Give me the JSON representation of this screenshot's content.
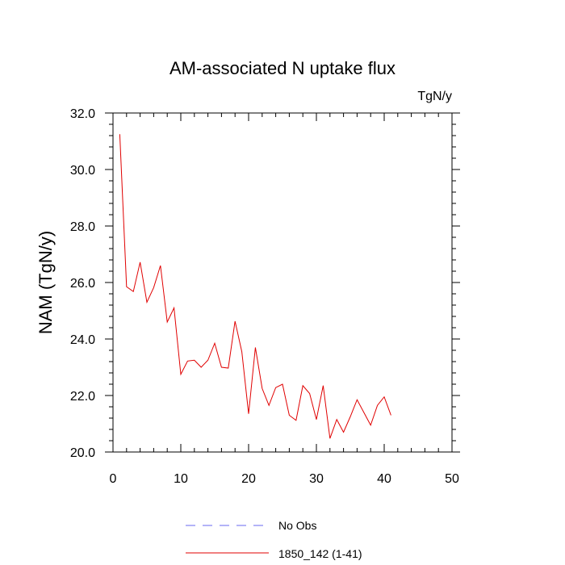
{
  "chart_data": {
    "type": "line",
    "title": "AM-associated N uptake flux",
    "units": "TgN/y",
    "xlabel": "",
    "ylabel": "NAM  (TgN/y)",
    "xlim": [
      0,
      50
    ],
    "ylim": [
      20.0,
      32.0
    ],
    "x_ticks": [
      0,
      10,
      20,
      30,
      40,
      50
    ],
    "x_tick_labels": [
      "0",
      "10",
      "20",
      "30",
      "40",
      "50"
    ],
    "y_ticks": [
      20,
      22,
      24,
      26,
      28,
      30,
      32
    ],
    "y_tick_labels": [
      "20.0",
      "22.0",
      "24.0",
      "26.0",
      "28.0",
      "30.0",
      "32.0"
    ],
    "grid": false,
    "legend_position": "bottom",
    "series": [
      {
        "name": "No Obs",
        "color": "#6a6af0",
        "dashed": true,
        "x": [],
        "values": []
      },
      {
        "name": "1850_142 (1-41)",
        "color": "#e00000",
        "dashed": false,
        "x": [
          1,
          2,
          3,
          4,
          5,
          6,
          7,
          8,
          9,
          10,
          11,
          12,
          13,
          14,
          15,
          16,
          17,
          18,
          19,
          20,
          21,
          22,
          23,
          24,
          25,
          26,
          27,
          28,
          29,
          30,
          31,
          32,
          33,
          34,
          35,
          36,
          37,
          38,
          39,
          40,
          41
        ],
        "values": [
          31.25,
          25.85,
          25.68,
          26.72,
          25.3,
          25.82,
          26.6,
          24.6,
          25.1,
          22.75,
          23.22,
          23.25,
          23.0,
          23.25,
          23.85,
          23.0,
          22.97,
          24.63,
          23.55,
          21.35,
          23.7,
          22.25,
          21.65,
          22.28,
          22.4,
          21.3,
          21.12,
          22.35,
          22.07,
          21.15,
          22.35,
          20.48,
          21.15,
          20.7,
          21.25,
          21.85,
          21.4,
          20.95,
          21.65,
          21.95,
          21.3
        ]
      }
    ]
  }
}
